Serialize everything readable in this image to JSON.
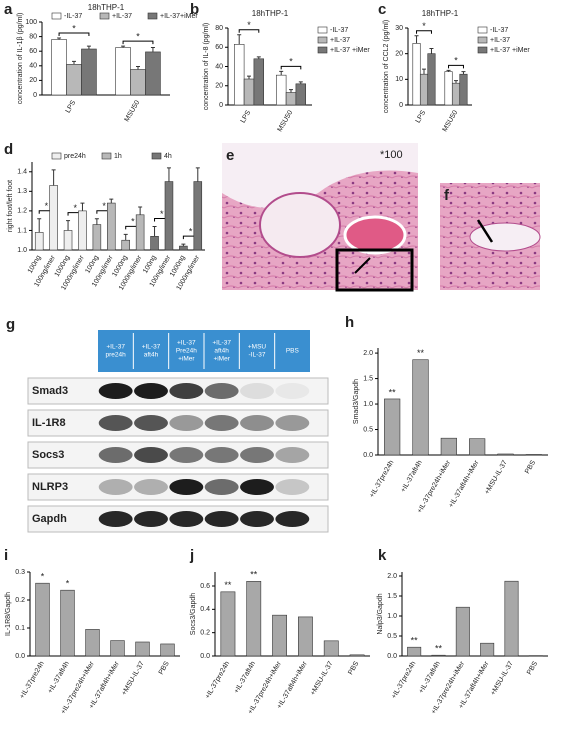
{
  "chart_data": [
    {
      "type": "bar",
      "label": "a",
      "title": "18hTHP-1",
      "ylabel": "concentration of IL-1β (pg/ml)",
      "categories": [
        "LPS",
        "MSU50"
      ],
      "legend": "top",
      "series": [
        {
          "name": "-IL-37",
          "color": "#ffffff",
          "values": [
            76,
            65
          ],
          "errors": [
            2,
            2
          ]
        },
        {
          "name": "+IL-37",
          "color": "#b8b8b8",
          "values": [
            42,
            35
          ],
          "errors": [
            4,
            4
          ]
        },
        {
          "name": "+IL-37+iMer",
          "color": "#777777",
          "values": [
            63,
            59
          ],
          "errors": [
            4,
            6
          ]
        }
      ],
      "annotations": [
        "*",
        "*"
      ],
      "ylim": [
        0,
        100
      ],
      "yticks": [
        0,
        20,
        40,
        60,
        80,
        100
      ]
    },
    {
      "type": "bar",
      "label": "b",
      "title": "18hTHP-1",
      "ylabel": "concentration of IL-8 (pg/ml)",
      "categories": [
        "LPS",
        "MSU50"
      ],
      "legend": "right",
      "series": [
        {
          "name": "-IL-37",
          "color": "#ffffff",
          "values": [
            63,
            31
          ],
          "errors": [
            10,
            4
          ]
        },
        {
          "name": "+IL-37",
          "color": "#b8b8b8",
          "values": [
            27,
            13
          ],
          "errors": [
            3,
            3
          ]
        },
        {
          "name": "+IL-37 +iMer",
          "color": "#777777",
          "values": [
            48,
            22
          ],
          "errors": [
            2,
            2
          ]
        }
      ],
      "annotations": [
        "*",
        "*"
      ],
      "ylim": [
        0,
        80
      ],
      "yticks": [
        0,
        20,
        40,
        60,
        80
      ]
    },
    {
      "type": "bar",
      "label": "c",
      "title": "18hTHP-1",
      "ylabel": "concentration of CCL2 (pg/ml)",
      "categories": [
        "LPS",
        "MSU50"
      ],
      "legend": "right",
      "series": [
        {
          "name": "-IL-37",
          "color": "#ffffff",
          "values": [
            24,
            13
          ],
          "errors": [
            3,
            0.5
          ]
        },
        {
          "name": "+IL-37",
          "color": "#b8b8b8",
          "values": [
            12,
            8.5
          ],
          "errors": [
            2,
            1
          ]
        },
        {
          "name": "+IL-37 +iMer",
          "color": "#777777",
          "values": [
            20,
            12
          ],
          "errors": [
            2,
            1
          ]
        }
      ],
      "annotations": [
        "*",
        "*"
      ],
      "ylim": [
        0,
        30
      ],
      "yticks": [
        0,
        10,
        20,
        30
      ]
    },
    {
      "type": "bar",
      "label": "d",
      "ylabel": "right foot/left foot",
      "legend": "top",
      "legend_items": [
        {
          "name": "pre24h",
          "color": "#eeeeee"
        },
        {
          "name": "1h",
          "color": "#b8b8b8"
        },
        {
          "name": "4h",
          "color": "#777777"
        }
      ],
      "categories": [
        "100ng",
        "100ng/imer",
        "1000ng",
        "1000ng/imer",
        "100ng",
        "100ng/imer",
        "1000ng",
        "1000ng/imer",
        "100ng",
        "100ng/imer",
        "1000ng",
        "1000ng/imer"
      ],
      "colors": [
        "#eeeeee",
        "#eeeeee",
        "#eeeeee",
        "#eeeeee",
        "#b8b8b8",
        "#b8b8b8",
        "#b8b8b8",
        "#b8b8b8",
        "#777777",
        "#777777",
        "#777777",
        "#777777"
      ],
      "values": [
        1.09,
        1.33,
        1.1,
        1.2,
        1.13,
        1.24,
        1.05,
        1.18,
        1.07,
        1.35,
        1.02,
        1.35
      ],
      "errors": [
        0.07,
        0.08,
        0.05,
        0.04,
        0.03,
        0.02,
        0.03,
        0.04,
        0.05,
        0.07,
        0.01,
        0.07
      ],
      "annotations": [
        "*",
        null,
        "*",
        null,
        "*",
        null,
        "*",
        null,
        "*",
        null,
        "*",
        null
      ],
      "ylim": [
        1.0,
        1.45
      ],
      "yticks": [
        {
          "value": 1.0,
          "label": "1.0"
        },
        1.1,
        1.2,
        1.3,
        1.4
      ]
    },
    {
      "type": "bar",
      "label": "h",
      "ylabel": "Smad3/Gapdh",
      "color": "#a8a8a8",
      "categories": [
        "+IL-37pre24h",
        "+IL-37aft4h",
        "+IL-37pre24h+iMer",
        "+IL-37aft4h+iMer",
        "+MSU-IL-37",
        "PBS"
      ],
      "values": [
        1.1,
        1.87,
        0.33,
        0.32,
        0.02,
        0.01
      ],
      "annotations": [
        "**",
        "**",
        null,
        null,
        null,
        null
      ],
      "ylim": [
        0,
        2.1
      ],
      "yticks": [
        {
          "value": 0,
          "label": "0.0"
        },
        0.5,
        {
          "value": 1,
          "label": "1.0"
        },
        1.5,
        {
          "value": 2,
          "label": "2.0"
        }
      ]
    },
    {
      "type": "bar",
      "label": "i",
      "ylabel": "IL-1R8/Gapdh",
      "color": "#a8a8a8",
      "categories": [
        "+IL-37pre24h",
        "+IL-37aft4h",
        "+IL-37pre24h+iMer",
        "+IL-37aft4h+iMer",
        "+MSU-IL-37",
        "PBS"
      ],
      "values": [
        0.26,
        0.235,
        0.095,
        0.055,
        0.05,
        0.043
      ],
      "annotations": [
        "*",
        "*",
        null,
        null,
        null,
        null
      ],
      "ylim": [
        0,
        0.3
      ],
      "yticks": [
        {
          "value": 0,
          "label": "0.0"
        },
        0.1,
        0.2,
        0.3
      ]
    },
    {
      "type": "bar",
      "label": "j",
      "ylabel": "Socs3/Gapdh",
      "color": "#a8a8a8",
      "categories": [
        "+IL-37pre24h",
        "+IL-37aft4h",
        "+IL-37pre24h+iMer",
        "+IL-37aft4h+iMer",
        "+MSU-IL-37",
        "PBS"
      ],
      "values": [
        0.55,
        0.64,
        0.35,
        0.335,
        0.13,
        0.01
      ],
      "annotations": [
        "**",
        "**",
        null,
        null,
        null,
        null
      ],
      "ylim": [
        0,
        0.72
      ],
      "yticks": [
        {
          "value": 0,
          "label": "0.0"
        },
        0.2,
        0.4,
        0.6
      ]
    },
    {
      "type": "bar",
      "label": "k",
      "ylabel": "Nalp3/Gapdh",
      "color": "#a8a8a8",
      "categories": [
        "+IL-37pre24h",
        "+IL-37aft4h",
        "+IL-37pre24h+iMer",
        "+IL-37aft4h+iMer",
        "+MSU-IL-37",
        "PBS"
      ],
      "values": [
        0.22,
        0.02,
        1.22,
        0.32,
        1.87,
        0.01
      ],
      "annotations": [
        "**",
        "**",
        null,
        null,
        null,
        null
      ],
      "ylim": [
        0,
        2.1
      ],
      "yticks": [
        {
          "value": 0,
          "label": "0.0"
        },
        0.5,
        {
          "value": 1,
          "label": "1.0"
        },
        1.5,
        {
          "value": 2,
          "label": "2.0"
        }
      ]
    }
  ],
  "images": {
    "e": {
      "label": "e",
      "note": "*100"
    },
    "f": {
      "label": "f"
    }
  },
  "blot": {
    "label": "g",
    "columns": [
      [
        "+IL-37",
        "pre24h"
      ],
      [
        "+IL-37",
        "aft4h"
      ],
      [
        "+IL-37",
        "Pre24h",
        "+iMer"
      ],
      [
        "+IL-37",
        "aft4h",
        "+iMer"
      ],
      [
        "+MSU",
        "-IL-37"
      ],
      [
        "PBS"
      ]
    ],
    "rows": [
      "Smad3",
      "IL-1R8",
      "Socs3",
      "NLRP3",
      "Gapdh"
    ]
  }
}
